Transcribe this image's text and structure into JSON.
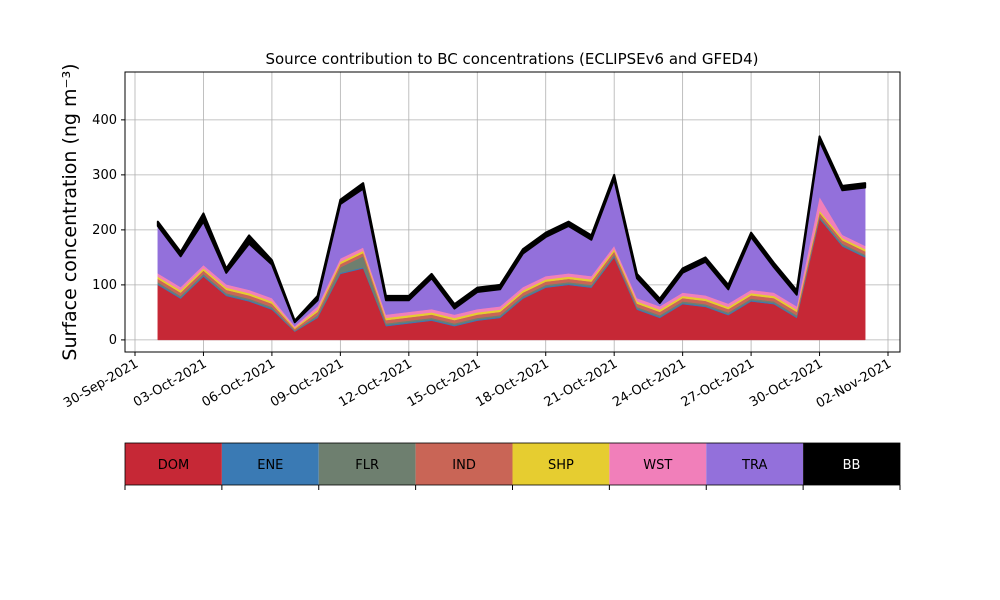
{
  "chart_data": {
    "type": "stacked_area",
    "title": "Source contribution to BC concentrations (ECLIPSEv6 and GFED4)",
    "y_label": "Surface concentration (ng m⁻³)",
    "x": [
      "2021-10-01",
      "2021-10-02",
      "2021-10-03",
      "2021-10-04",
      "2021-10-05",
      "2021-10-06",
      "2021-10-07",
      "2021-10-08",
      "2021-10-09",
      "2021-10-10",
      "2021-10-11",
      "2021-10-12",
      "2021-10-13",
      "2021-10-14",
      "2021-10-15",
      "2021-10-16",
      "2021-10-17",
      "2021-10-18",
      "2021-10-19",
      "2021-10-20",
      "2021-10-21",
      "2021-10-22",
      "2021-10-23",
      "2021-10-24",
      "2021-10-25",
      "2021-10-26",
      "2021-10-27",
      "2021-10-28",
      "2021-10-29",
      "2021-10-30",
      "2021-10-31",
      "2021-11-01"
    ],
    "series": [
      {
        "name": "DOM",
        "color": "#c62836",
        "values": [
          100,
          75,
          115,
          80,
          70,
          55,
          15,
          40,
          120,
          130,
          25,
          30,
          35,
          25,
          35,
          40,
          75,
          95,
          100,
          95,
          150,
          55,
          40,
          65,
          60,
          45,
          70,
          65,
          40,
          220,
          170,
          150
        ]
      },
      {
        "name": "ENE",
        "color": "#3a7ab4",
        "values": [
          2,
          2,
          2,
          2,
          2,
          2,
          1,
          2,
          2,
          2,
          2,
          2,
          2,
          2,
          2,
          2,
          2,
          2,
          2,
          2,
          2,
          2,
          2,
          2,
          2,
          2,
          2,
          2,
          2,
          2,
          2,
          2
        ]
      },
      {
        "name": "FLR",
        "color": "#6e7f6f",
        "values": [
          3,
          3,
          3,
          3,
          3,
          3,
          1,
          3,
          10,
          20,
          3,
          3,
          3,
          3,
          3,
          3,
          3,
          3,
          3,
          3,
          3,
          3,
          3,
          3,
          3,
          3,
          3,
          3,
          3,
          3,
          3,
          3
        ]
      },
      {
        "name": "IND",
        "color": "#c96556",
        "values": [
          6,
          6,
          6,
          6,
          6,
          6,
          3,
          6,
          6,
          6,
          6,
          6,
          6,
          6,
          6,
          6,
          6,
          6,
          6,
          6,
          6,
          6,
          6,
          6,
          6,
          6,
          6,
          6,
          6,
          6,
          6,
          6
        ]
      },
      {
        "name": "SHP",
        "color": "#e6cd30",
        "values": [
          4,
          4,
          4,
          4,
          4,
          4,
          2,
          4,
          4,
          4,
          4,
          4,
          4,
          4,
          4,
          4,
          4,
          4,
          4,
          4,
          4,
          4,
          4,
          4,
          4,
          4,
          4,
          4,
          4,
          4,
          4,
          4
        ]
      },
      {
        "name": "WST",
        "color": "#f17fba",
        "values": [
          6,
          6,
          6,
          6,
          6,
          6,
          3,
          6,
          6,
          6,
          6,
          6,
          6,
          6,
          6,
          6,
          6,
          6,
          6,
          6,
          6,
          6,
          6,
          6,
          6,
          6,
          6,
          6,
          6,
          25,
          6,
          6
        ]
      },
      {
        "name": "TRA",
        "color": "#9370db",
        "values": [
          86,
          56,
          79,
          21,
          84,
          61,
          7,
          11,
          99,
          107,
          26,
          21,
          56,
          11,
          31,
          31,
          61,
          71,
          86,
          66,
          121,
          36,
          6,
          36,
          61,
          26,
          96,
          46,
          21,
          102,
          81,
          106
        ]
      },
      {
        "name": "BB",
        "color": "#000000",
        "values": [
          8,
          8,
          15,
          8,
          15,
          8,
          3,
          8,
          8,
          10,
          8,
          8,
          8,
          8,
          8,
          8,
          8,
          8,
          8,
          8,
          8,
          8,
          8,
          8,
          8,
          8,
          8,
          8,
          8,
          8,
          8,
          8
        ]
      }
    ],
    "xlim": [
      "2021-09-30",
      "2021-11-02"
    ],
    "xticks": [
      {
        "value": "2021-09-30",
        "label": "30-Sep-2021"
      },
      {
        "value": "2021-10-03",
        "label": "03-Oct-2021"
      },
      {
        "value": "2021-10-06",
        "label": "06-Oct-2021"
      },
      {
        "value": "2021-10-09",
        "label": "09-Oct-2021"
      },
      {
        "value": "2021-10-12",
        "label": "12-Oct-2021"
      },
      {
        "value": "2021-10-15",
        "label": "15-Oct-2021"
      },
      {
        "value": "2021-10-18",
        "label": "18-Oct-2021"
      },
      {
        "value": "2021-10-21",
        "label": "21-Oct-2021"
      },
      {
        "value": "2021-10-24",
        "label": "24-Oct-2021"
      },
      {
        "value": "2021-10-27",
        "label": "27-Oct-2021"
      },
      {
        "value": "2021-10-30",
        "label": "30-Oct-2021"
      },
      {
        "value": "2021-11-02",
        "label": "02-Nov-2021"
      }
    ],
    "ylim": [
      -22,
      487
    ],
    "yticks": [
      0,
      100,
      200,
      300,
      400
    ],
    "grid": true
  }
}
